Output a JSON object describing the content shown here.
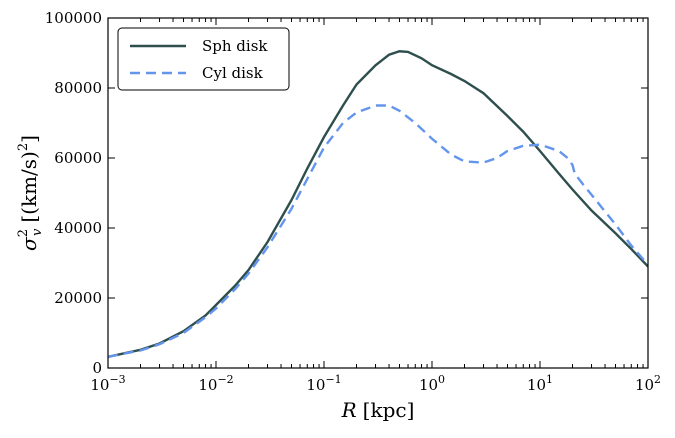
{
  "chart_data": {
    "type": "line",
    "xscale": "log",
    "xlim": [
      0.001,
      100
    ],
    "ylim": [
      0,
      100000
    ],
    "xlabel_var": "R",
    "xlabel_unit": "[kpc]",
    "ylabel_var": "σ",
    "ylabel_sub": "v",
    "ylabel_sup": "2",
    "ylabel_unit": "[(km/s)",
    "ylabel_unit_sup": "2",
    "ylabel_close": "]",
    "x_ticks": [
      {
        "value": 0.001,
        "base": "10",
        "exp": "−3"
      },
      {
        "value": 0.01,
        "base": "10",
        "exp": "−2"
      },
      {
        "value": 0.1,
        "base": "10",
        "exp": "−1"
      },
      {
        "value": 1,
        "base": "10",
        "exp": "0"
      },
      {
        "value": 10,
        "base": "10",
        "exp": "1"
      },
      {
        "value": 100,
        "base": "10",
        "exp": "2"
      }
    ],
    "y_ticks": [
      "0",
      "20000",
      "40000",
      "60000",
      "80000",
      "100000"
    ],
    "grid": false,
    "legend_position": "top-left",
    "series": [
      {
        "name": "Sph disk",
        "color": "#2f4f4f",
        "dash": "solid",
        "x": [
          0.001,
          0.002,
          0.003,
          0.005,
          0.008,
          0.01,
          0.015,
          0.02,
          0.03,
          0.05,
          0.07,
          0.1,
          0.15,
          0.2,
          0.3,
          0.4,
          0.5,
          0.6,
          0.8,
          1,
          1.5,
          2,
          3,
          5,
          7,
          10,
          15,
          20,
          30,
          50,
          70,
          100
        ],
        "y": [
          3200,
          5200,
          7000,
          10500,
          15000,
          18000,
          23500,
          28000,
          36000,
          48000,
          57000,
          66000,
          75000,
          81000,
          86500,
          89500,
          90500,
          90300,
          88500,
          86500,
          84000,
          82000,
          78500,
          72000,
          67500,
          62000,
          55500,
          51000,
          45000,
          38500,
          34000,
          29000
        ]
      },
      {
        "name": "Cyl disk",
        "color": "#6495ed",
        "dash": "dashed",
        "x": [
          0.001,
          0.002,
          0.003,
          0.005,
          0.008,
          0.01,
          0.015,
          0.02,
          0.03,
          0.05,
          0.07,
          0.1,
          0.15,
          0.2,
          0.3,
          0.4,
          0.5,
          0.7,
          1,
          1.5,
          2,
          3,
          4,
          5,
          7,
          10,
          15,
          18,
          20,
          21,
          25,
          30,
          50,
          70,
          100
        ],
        "y": [
          3200,
          5000,
          6800,
          10000,
          14500,
          17000,
          22500,
          27000,
          34500,
          45500,
          54000,
          63000,
          70000,
          73000,
          75000,
          75000,
          73500,
          70000,
          65500,
          61000,
          59000,
          58700,
          60000,
          62000,
          63500,
          63800,
          62000,
          60000,
          58000,
          55500,
          52500,
          49500,
          41000,
          35000,
          29500
        ]
      }
    ]
  }
}
